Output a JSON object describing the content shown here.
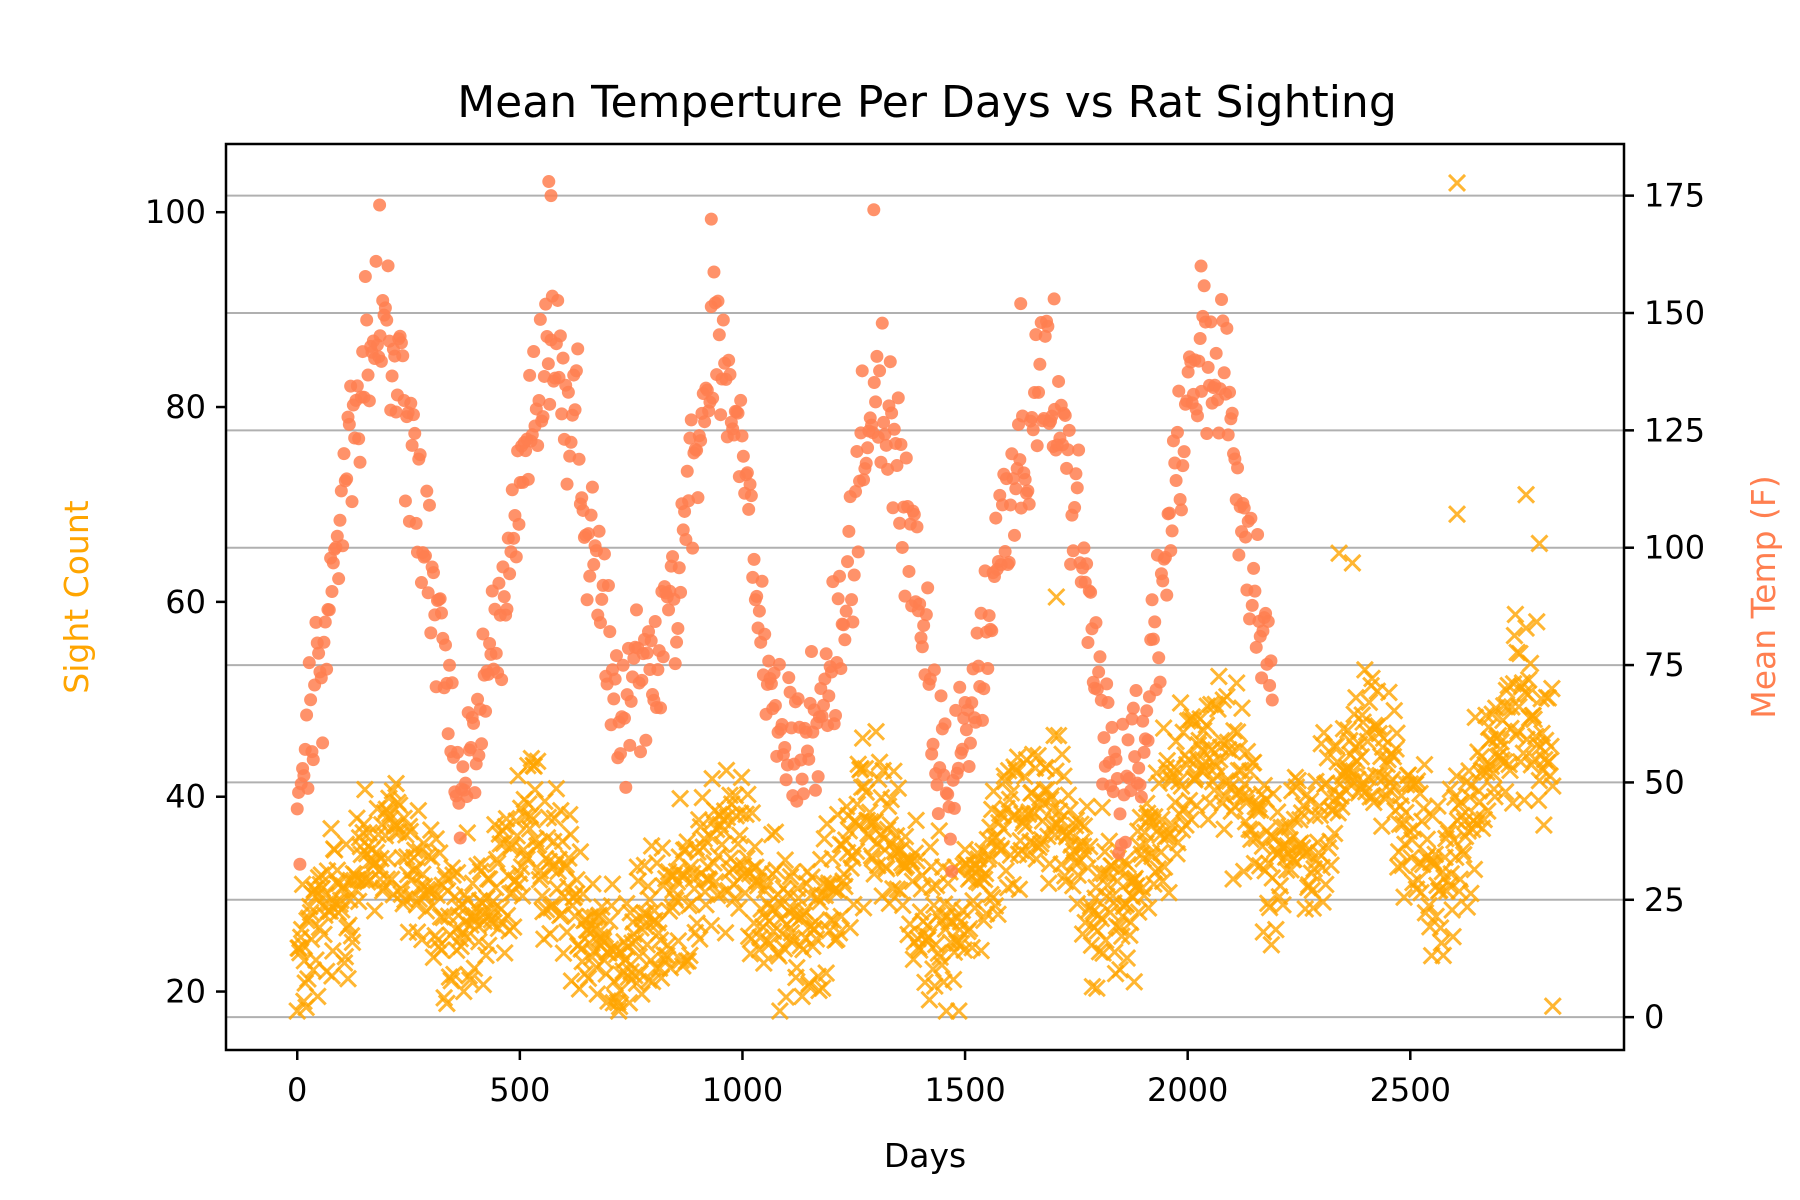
{
  "chart_data": {
    "type": "scatter",
    "title": "Mean Temperture Per Days vs Rat Sighting",
    "xlabel": "Days",
    "ylabel_left": "Sight Count",
    "ylabel_right": "Mean Temp (F)",
    "xlim": [
      -160,
      2980
    ],
    "ylim_left": [
      14,
      107
    ],
    "ylim_right": [
      -7,
      186
    ],
    "xticks": [
      0,
      500,
      1000,
      1500,
      2000,
      2500
    ],
    "yticks_left": [
      20,
      40,
      60,
      80,
      100
    ],
    "yticks_right": [
      0,
      25,
      50,
      75,
      100,
      125,
      150,
      175
    ],
    "grid": "horizontal on right axis",
    "colors": {
      "sight": "#FFA500",
      "temp": "#FF7F50"
    },
    "series": [
      {
        "name": "Sight Count",
        "axis": "left",
        "marker": "x",
        "x_range": [
          0,
          2820
        ],
        "trend_x": [
          0,
          100,
          200,
          300,
          360,
          450,
          520,
          600,
          720,
          820,
          900,
          980,
          1080,
          1150,
          1250,
          1300,
          1400,
          1460,
          1550,
          1650,
          1700,
          1800,
          1850,
          1950,
          2030,
          2100,
          2200,
          2300,
          2380,
          2450,
          2550,
          2600,
          2700,
          2760,
          2820
        ],
        "trend_y": [
          23,
          30,
          36,
          30,
          24,
          30,
          37,
          31,
          24,
          27,
          33,
          35,
          26,
          28,
          35,
          38,
          29,
          25,
          33,
          40,
          40,
          30,
          28,
          38,
          46,
          43,
          34,
          36,
          46,
          43,
          31,
          34,
          45,
          50,
          45
        ],
        "spread": 6,
        "outliers": [
          [
            2605,
            103
          ],
          [
            2605,
            69
          ],
          [
            2760,
            71
          ],
          [
            2790,
            66
          ],
          [
            2820,
            18.5
          ],
          [
            1705,
            60.5
          ],
          [
            2340,
            65
          ],
          [
            2370,
            64
          ],
          [
            15,
            19
          ],
          [
            1880,
            21
          ]
        ]
      },
      {
        "name": "Mean Temp (F)",
        "axis": "right",
        "marker": "o",
        "x_range": [
          0,
          2190
        ],
        "trend_x": [
          0,
          60,
          120,
          190,
          260,
          320,
          365,
          420,
          480,
          560,
          620,
          680,
          720,
          800,
          870,
          940,
          1000,
          1050,
          1100,
          1170,
          1230,
          1290,
          1350,
          1420,
          1460,
          1530,
          1600,
          1680,
          1740,
          1800,
          1850,
          1910,
          1960,
          2040,
          2090,
          2150,
          2190
        ],
        "trend_y": [
          42,
          80,
          125,
          150,
          120,
          80,
          45,
          68,
          100,
          145,
          128,
          90,
          70,
          72,
          105,
          145,
          120,
          75,
          55,
          60,
          90,
          135,
          120,
          68,
          45,
          72,
          110,
          138,
          115,
          70,
          48,
          65,
          105,
          145,
          132,
          90,
          75
        ],
        "spread": 12,
        "outliers": [
          [
            565,
            178
          ],
          [
            570,
            175
          ],
          [
            185,
            173
          ],
          [
            930,
            170
          ],
          [
            1295,
            172
          ],
          [
            1700,
            153
          ],
          [
            1625,
            152
          ],
          [
            2030,
            160
          ]
        ]
      }
    ]
  }
}
